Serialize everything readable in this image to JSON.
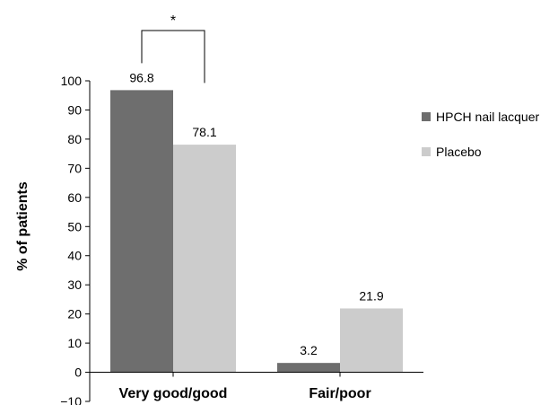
{
  "chart_data": {
    "type": "bar",
    "categories": [
      "Very good/good",
      "Fair/poor"
    ],
    "series": [
      {
        "name": "HPCH nail lacquer",
        "values": [
          96.8,
          3.2
        ],
        "color": "#6e6e6e"
      },
      {
        "name": "Placebo",
        "values": [
          78.1,
          21.9
        ],
        "color": "#cccccc"
      }
    ],
    "data_labels": [
      [
        "96.8",
        "78.1"
      ],
      [
        "3.2",
        "21.9"
      ]
    ],
    "ylabel": "% of patients",
    "ylim": [
      -10,
      100
    ],
    "yticks": [
      -10,
      0,
      10,
      20,
      30,
      40,
      50,
      60,
      70,
      80,
      90,
      100
    ],
    "ytick_labels": [
      "−10",
      "0",
      "10",
      "20",
      "30",
      "40",
      "50",
      "60",
      "70",
      "80",
      "90",
      "100"
    ],
    "legend_placement": "right",
    "grid": false,
    "annotation": {
      "text": "*",
      "category": "Very good/good",
      "between_series": [
        0,
        1
      ]
    }
  }
}
